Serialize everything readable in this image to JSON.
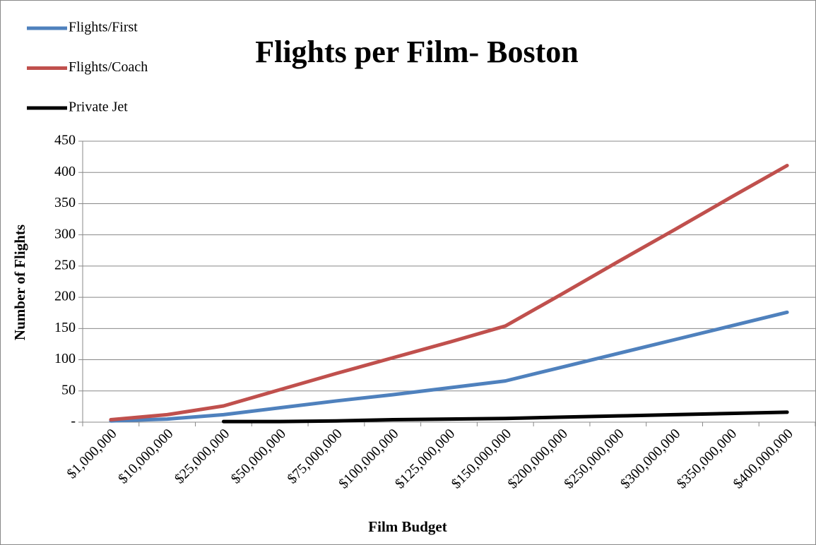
{
  "chart_data": {
    "type": "line",
    "title": "Flights per Film- Boston",
    "x_label": "Film Budget",
    "y_label": "Number of Flights",
    "categories": [
      "$1,000,000",
      "$10,000,000",
      "$25,000,000",
      "$50,000,000",
      "$75,000,000",
      "$100,000,000",
      "$125,000,000",
      "$150,000,000",
      "$200,000,000",
      "$250,000,000",
      "$300,000,000",
      "$350,000,000",
      "$400,000,000"
    ],
    "series": [
      {
        "name": "Flights/First",
        "color": "#4f81bd",
        "values": [
          2,
          5,
          12,
          23,
          34,
          44,
          55,
          66,
          88,
          110,
          132,
          154,
          176
        ]
      },
      {
        "name": "Flights/Coach",
        "color": "#c0504d",
        "values": [
          4,
          12,
          26,
          52,
          78,
          103,
          128,
          154,
          205,
          257,
          308,
          360,
          411
        ]
      },
      {
        "name": "Private Jet",
        "color": "#000000",
        "values": [
          null,
          null,
          1,
          1,
          2,
          4,
          5,
          6,
          8,
          10,
          12,
          14,
          16
        ]
      }
    ],
    "ylim": [
      0,
      450
    ],
    "yticks": [
      {
        "value": 0,
        "label": "-"
      },
      50,
      100,
      150,
      200,
      250,
      300,
      350,
      400,
      450
    ],
    "grid": true,
    "legend": "top-left"
  }
}
